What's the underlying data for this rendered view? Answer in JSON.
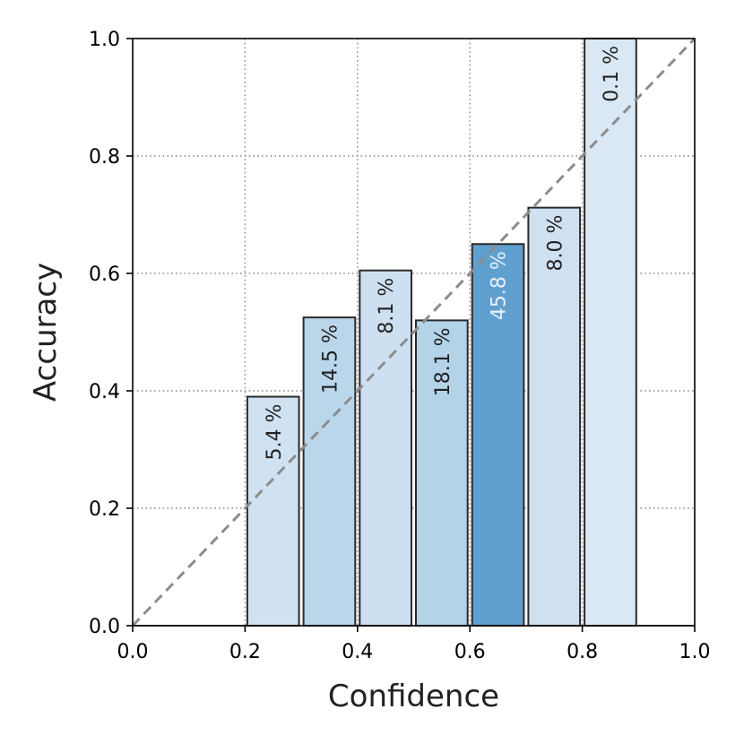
{
  "chart_data": {
    "type": "bar",
    "xlabel": "Confidence",
    "ylabel": "Accuracy",
    "xlim": [
      0.0,
      1.0
    ],
    "ylim": [
      0.0,
      1.0
    ],
    "xticks": [
      "0.0",
      "0.2",
      "0.4",
      "0.6",
      "0.8",
      "1.0"
    ],
    "yticks": [
      "0.0",
      "0.2",
      "0.4",
      "0.6",
      "0.8",
      "1.0"
    ],
    "grid": true,
    "bin_width": 0.1,
    "diagonal_reference": true,
    "bars": [
      {
        "x_start": 0.2,
        "accuracy": 0.39,
        "label": "5.4 %",
        "color": "#d0e1f2",
        "label_color": "#222222"
      },
      {
        "x_start": 0.3,
        "accuracy": 0.525,
        "label": "14.5 %",
        "color": "#bad6eb",
        "label_color": "#222222"
      },
      {
        "x_start": 0.4,
        "accuracy": 0.605,
        "label": "8.1 %",
        "color": "#cde0f1",
        "label_color": "#222222"
      },
      {
        "x_start": 0.5,
        "accuracy": 0.52,
        "label": "18.1 %",
        "color": "#b3d3e8",
        "label_color": "#222222"
      },
      {
        "x_start": 0.6,
        "accuracy": 0.65,
        "label": "45.8 %",
        "color": "#60a0cf",
        "label_color": "#e8f1fa"
      },
      {
        "x_start": 0.7,
        "accuracy": 0.712,
        "label": "8.0 %",
        "color": "#cfe0f1",
        "label_color": "#222222"
      },
      {
        "x_start": 0.8,
        "accuracy": 1.0,
        "label": "0.1 %",
        "color": "#dae8f5",
        "label_color": "#222222"
      }
    ],
    "colors": {
      "bar_edge": "#2a2a2a",
      "grid": "#8a8a8a",
      "diagonal": "#8c8c8c",
      "axis": "#000000"
    }
  }
}
